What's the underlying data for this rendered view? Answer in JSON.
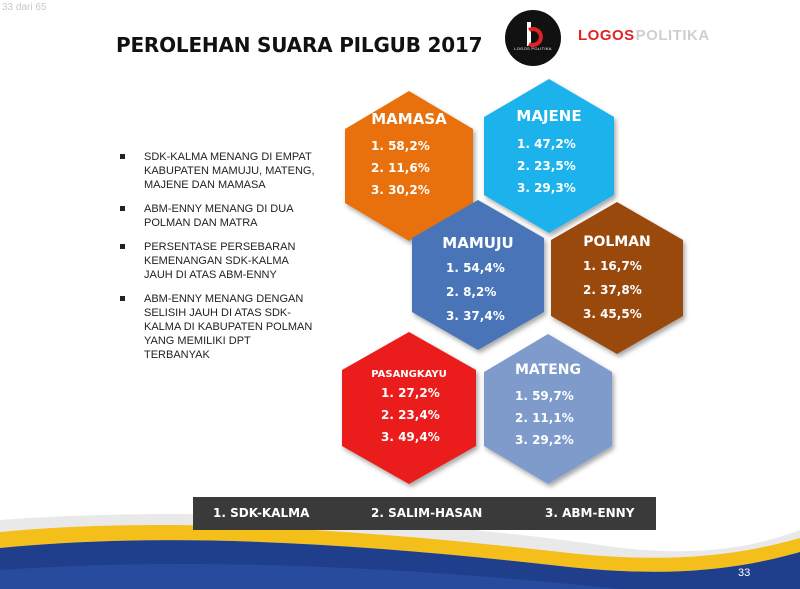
{
  "page_indicator": "33 dari 65",
  "title": "PEROLEHAN SUARA PILGUB 2017",
  "logo": {
    "brand_red": "LOGOS",
    "brand_grey": "POLITIKA",
    "small_text": "LOGOS POLITIKA"
  },
  "bullets": [
    "SDK-KALMA MENANG DI EMPAT KABUPATEN MAMUJU, MATENG, MAJENE DAN MAMASA",
    "ABM-ENNY MENANG DI DUA POLMAN DAN MATRA",
    "PERSENTASE PERSEBARAN KEMENANGAN SDK-KALMA JAUH DI ATAS ABM-ENNY",
    "ABM-ENNY MENANG DENGAN SELISIH JAUH DI ATAS SDK-KALMA DI KABUPATEN POLMAN YANG MEMILIKI DPT TERBANYAK"
  ],
  "regions": [
    {
      "name": "MAMASA",
      "color": "#e8710e",
      "results": [
        "1. 58,2%",
        "2. 11,6%",
        "3. 30,2%"
      ]
    },
    {
      "name": "MAJENE",
      "color": "#1fb3ec",
      "results": [
        "1. 47,2%",
        "2. 23,5%",
        "3. 29,3%"
      ]
    },
    {
      "name": "MAMUJU",
      "color": "#4a75b8",
      "results": [
        "1. 54,4%",
        "2. 8,2%",
        "3. 37,4%"
      ]
    },
    {
      "name": "POLMAN",
      "color": "#9a4a10",
      "results": [
        "1. 16,7%",
        "2. 37,8%",
        "3. 45,5%"
      ]
    },
    {
      "name": "PASANGKAYU",
      "color": "#ea1c1c",
      "results": [
        "1. 27,2%",
        "2. 23,4%",
        "3. 49,4%"
      ]
    },
    {
      "name": "MATENG",
      "color": "#7e9bcc",
      "results": [
        "1. 59,7%",
        "2. 11,1%",
        "3. 29,2%"
      ]
    }
  ],
  "legend": [
    "1. SDK-KALMA",
    "2. SALIM-HASAN",
    "3. ABM-ENNY"
  ],
  "slide_number": "33",
  "colors": {
    "wave_blue": "#1f3e8c",
    "wave_yellow": "#f4bf1a",
    "legend_bg": "#3a3a3a"
  }
}
